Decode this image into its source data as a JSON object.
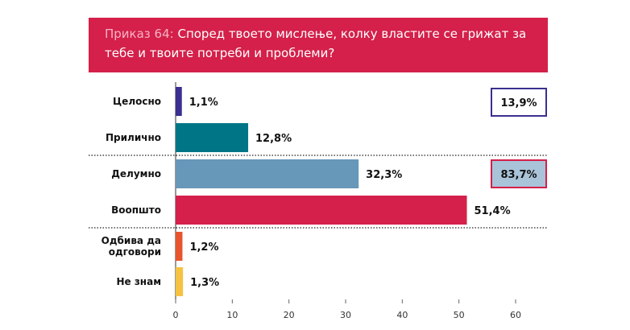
{
  "header": {
    "prefix": "Приказ 64:",
    "question_line1": "Според твоето мислење, колку властите се грижат за",
    "question_line2": "тебе и твоите потреби и проблеми?"
  },
  "chart_data": {
    "type": "bar",
    "orientation": "horizontal",
    "categories": [
      "Целосно",
      "Прилично",
      "Делумно",
      "Воопшто",
      "Одбива да одговори",
      "Не знам"
    ],
    "category_lines": [
      [
        "Целосно"
      ],
      [
        "Прилично"
      ],
      [
        "Делумно"
      ],
      [
        "Воопшто"
      ],
      [
        "Одбива да",
        "одговори"
      ],
      [
        "Не знам"
      ]
    ],
    "values": [
      1.1,
      12.8,
      32.3,
      51.4,
      1.2,
      1.3
    ],
    "value_labels": [
      "1,1%",
      "12,8%",
      "32,3%",
      "51,4%",
      "1,2%",
      "1,3%"
    ],
    "colors": [
      "#3b2f8f",
      "#007585",
      "#6797b9",
      "#d4204a",
      "#e8542c",
      "#f5c242"
    ],
    "xlim": [
      0,
      60
    ],
    "ticks": [
      0,
      10,
      20,
      30,
      40,
      50,
      60
    ],
    "groups": [
      {
        "label": "13,9%",
        "border": "#3b2f8f",
        "fill": "#ffffff"
      },
      {
        "label": "83,7%",
        "border": "#d4204a",
        "fill": "#a9c3d8"
      }
    ]
  }
}
